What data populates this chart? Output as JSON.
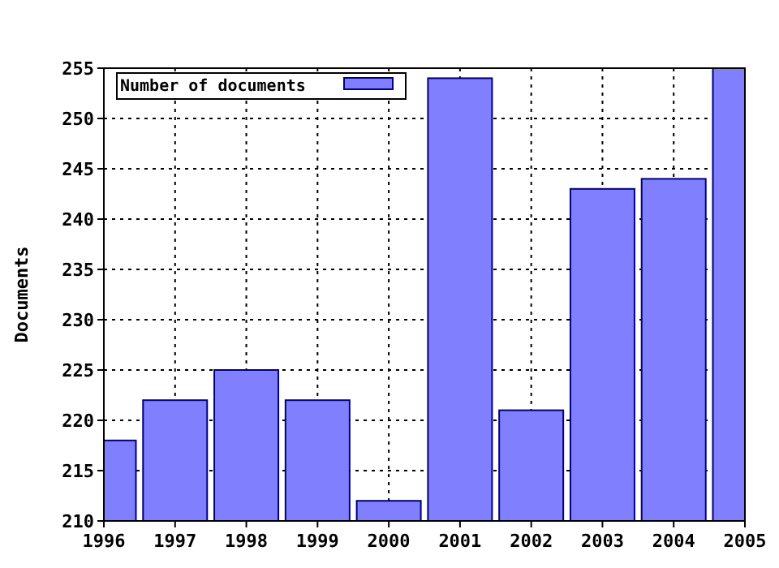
{
  "chart_data": {
    "type": "bar",
    "ylabel": "Documents",
    "x": [
      1996,
      1997,
      1998,
      1999,
      2000,
      2001,
      2002,
      2003,
      2004,
      2005
    ],
    "series": [
      {
        "name": "Number of documents",
        "color": "#8080ff",
        "values": [
          218,
          222,
          225,
          222,
          212,
          254,
          221,
          243,
          244,
          255
        ]
      }
    ],
    "xlim": [
      1996,
      2005
    ],
    "xticks": [
      1996,
      1997,
      1998,
      1999,
      2000,
      2001,
      2002,
      2003,
      2004,
      2005
    ],
    "ylim": [
      210,
      255
    ],
    "yticks": [
      210,
      215,
      220,
      225,
      230,
      235,
      240,
      245,
      250,
      255
    ],
    "grid": true,
    "legend": "top left"
  }
}
